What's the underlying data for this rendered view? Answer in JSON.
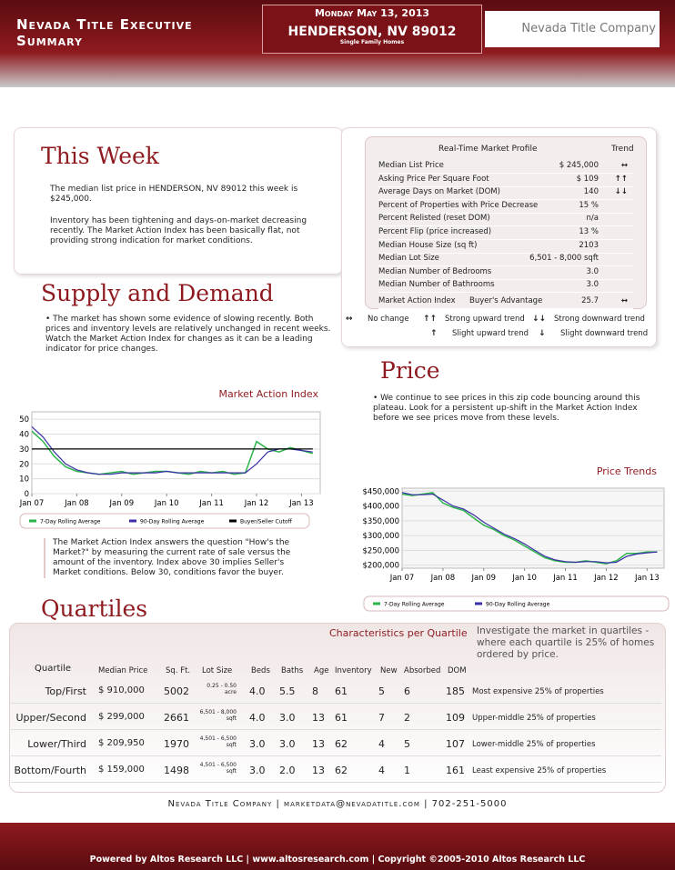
{
  "header": {
    "title": "Nevada Title Executive Summary",
    "date": "Monday May 13, 2013",
    "location": "HENDERSON, NV 89012",
    "property_type": "Single Family Homes",
    "logo": "Nevada Title Company"
  },
  "this_week": {
    "heading": "This Week",
    "paragraphs": [
      "The median list price in HENDERSON, NV 89012 this week is $245,000.",
      "Inventory has been tightening and days-on-market decreasing recently. The Market Action Index has been basically flat, not providing strong indication for market conditions."
    ]
  },
  "profile": {
    "title": "Real-Time Market Profile",
    "trend_header": "Trend",
    "rows": [
      {
        "label": "Median List Price",
        "value": "$ 245,000",
        "trend": "↔"
      },
      {
        "label": "Asking Price Per Square Foot",
        "value": "$ 109",
        "trend": "↑↑"
      },
      {
        "label": "Average Days on Market (DOM)",
        "value": "140",
        "trend": "↓↓"
      },
      {
        "label": "Percent of Properties with Price Decrease",
        "value": "15 %"
      },
      {
        "label": "Percent Relisted (reset DOM)",
        "value": "n/a"
      },
      {
        "label": "Percent Flip (price increased)",
        "value": "13 %"
      },
      {
        "label": "Median House Size (sq ft)",
        "value": "2103"
      },
      {
        "label": "Median Lot Size",
        "value": "6,501 - 8,000 sqft"
      },
      {
        "label": "Median Number of Bedrooms",
        "value": "3.0"
      },
      {
        "label": "Median Number of Bathrooms",
        "value": "3.0"
      },
      {
        "label": "Market Action Index",
        "note": "Buyer's Advantage",
        "value": "25.7",
        "trend": "↔"
      }
    ]
  },
  "trend_legend": [
    {
      "symbol": "↔",
      "label": "No change"
    },
    {
      "symbol": "↑↑",
      "label": "Strong upward trend"
    },
    {
      "symbol": "↓↓",
      "label": "Strong downward trend"
    },
    {
      "symbol": "↑",
      "label": "Slight upward trend"
    },
    {
      "symbol": "↓",
      "label": "Slight downward trend"
    }
  ],
  "supply": {
    "heading": "Supply and Demand",
    "text": "The market has shown some evidence of slowing recently.  Both prices and inventory levels are relatively unchanged in recent weeks. Watch the Market Action Index for changes as it can be a leading indicator for price changes."
  },
  "price": {
    "heading": "Price",
    "text": "We continue to see prices in this zip code bouncing around this plateau. Look for a persistent up-shift in the Market Action Index before we see prices move from these levels."
  },
  "mai_caption": "The Market Action Index answers the question \"How's the Market?\" by measuring the current rate of sale versus the amount of the inventory.  Index above 30 implies Seller's Market conditions. Below 30, conditions favor the buyer.",
  "chart_data": [
    {
      "type": "line",
      "title": "Market Action Index",
      "x": [
        0,
        3,
        6,
        9,
        12,
        15,
        18,
        21,
        24,
        27,
        30,
        33,
        36,
        39,
        42,
        45,
        48,
        51,
        54,
        57,
        60,
        63,
        66,
        69,
        72,
        75
      ],
      "xlim": [
        0,
        77
      ],
      "xticks": [
        {
          "value": 0,
          "label": "Jan 07"
        },
        {
          "value": 12,
          "label": "Jan 08"
        },
        {
          "value": 24,
          "label": "Jan 09"
        },
        {
          "value": 36,
          "label": "Jan 10"
        },
        {
          "value": 48,
          "label": "Jan 11"
        },
        {
          "value": 60,
          "label": "Jan 12"
        },
        {
          "value": 72,
          "label": "Jan 13"
        }
      ],
      "ylim": [
        0,
        55
      ],
      "yticks": [
        0,
        10,
        20,
        30,
        40,
        50
      ],
      "series": [
        {
          "name": "7-Day Rolling Average",
          "color": "#2db34a",
          "values": [
            42,
            35,
            25,
            18,
            15,
            14,
            13,
            14,
            15,
            13,
            14,
            15,
            15,
            14,
            13,
            15,
            14,
            15,
            13,
            14,
            35,
            30,
            28,
            31,
            29,
            27
          ]
        },
        {
          "name": "90-Day Rolling Average",
          "color": "#3a2fa8",
          "values": [
            45,
            38,
            28,
            20,
            16,
            14,
            13,
            13,
            14,
            14,
            14,
            14,
            15,
            14,
            14,
            14,
            14,
            14,
            14,
            14,
            20,
            28,
            30,
            30,
            29,
            28
          ]
        },
        {
          "name": "Buyer/Seller Cutoff",
          "color": "#000000",
          "values": [
            30,
            30,
            30,
            30,
            30,
            30,
            30,
            30,
            30,
            30,
            30,
            30,
            30,
            30,
            30,
            30,
            30,
            30,
            30,
            30,
            30,
            30,
            30,
            30,
            30,
            30
          ]
        }
      ]
    },
    {
      "type": "line",
      "title": "Price Trends",
      "x": [
        0,
        3,
        6,
        9,
        12,
        15,
        18,
        21,
        24,
        27,
        30,
        33,
        36,
        39,
        42,
        45,
        48,
        51,
        54,
        57,
        60,
        63,
        66,
        69,
        72,
        75
      ],
      "xlim": [
        0,
        77
      ],
      "xticks": [
        {
          "value": 0,
          "label": "Jan 07"
        },
        {
          "value": 12,
          "label": "Jan 08"
        },
        {
          "value": 24,
          "label": "Jan 09"
        },
        {
          "value": 36,
          "label": "Jan 10"
        },
        {
          "value": 48,
          "label": "Jan 11"
        },
        {
          "value": 60,
          "label": "Jan 12"
        },
        {
          "value": 72,
          "label": "Jan 13"
        }
      ],
      "ylim": [
        190000,
        460000
      ],
      "yticks": [
        {
          "value": 200000,
          "label": "$200,000"
        },
        {
          "value": 250000,
          "label": "$250,000"
        },
        {
          "value": 300000,
          "label": "$300,000"
        },
        {
          "value": 350000,
          "label": "$350,000"
        },
        {
          "value": 400000,
          "label": "$400,000"
        },
        {
          "value": 450000,
          "label": "$450,000"
        }
      ],
      "series": [
        {
          "name": "7-Day Rolling Average",
          "color": "#2db34a",
          "values": [
            440000,
            435000,
            440000,
            445000,
            410000,
            395000,
            385000,
            360000,
            335000,
            320000,
            300000,
            285000,
            265000,
            245000,
            225000,
            215000,
            210000,
            210000,
            215000,
            210000,
            205000,
            215000,
            240000,
            240000,
            245000,
            245000
          ]
        },
        {
          "name": "90-Day Rolling Average",
          "color": "#3a2fa8",
          "values": [
            445000,
            438000,
            438000,
            440000,
            420000,
            400000,
            390000,
            370000,
            345000,
            325000,
            305000,
            290000,
            272000,
            250000,
            230000,
            218000,
            212000,
            210000,
            212000,
            212000,
            208000,
            210000,
            230000,
            238000,
            242000,
            245000
          ]
        }
      ]
    }
  ],
  "quartiles": {
    "heading": "Quartiles",
    "subtitle": "Characteristics per Quartile",
    "intro": "Investigate the market in quartiles - where each quartile is 25% of homes ordered by price.",
    "columns": [
      "Quartile",
      "Median Price",
      "Sq. Ft.",
      "Lot Size",
      "Beds",
      "Baths",
      "Age",
      "Inventory",
      "New",
      "Absorbed",
      "DOM"
    ],
    "rows": [
      [
        "Top/First",
        "$ 910,000",
        "5002",
        "0.25 - 0.50 acre",
        "4.0",
        "5.5",
        "8",
        "61",
        "5",
        "6",
        "185",
        "Most expensive 25% of properties"
      ],
      [
        "Upper/Second",
        "$ 299,000",
        "2661",
        "6,501 - 8,000 sqft",
        "4.0",
        "3.0",
        "13",
        "61",
        "7",
        "2",
        "109",
        "Upper-middle 25% of properties"
      ],
      [
        "Lower/Third",
        "$ 209,950",
        "1970",
        "4,501 - 6,500 sqft",
        "3.0",
        "3.0",
        "13",
        "62",
        "4",
        "5",
        "107",
        "Lower-middle 25% of properties"
      ],
      [
        "Bottom/Fourth",
        "$ 159,000",
        "1498",
        "4,501 - 6,500 sqft",
        "3.0",
        "2.0",
        "13",
        "62",
        "4",
        "1",
        "161",
        "Least expensive 25% of properties"
      ]
    ]
  },
  "contact": "Nevada Title Company | marketdata@nevadatitle.com | 702-251-5000",
  "footer": "Powered by Altos Research LLC | www.altosresearch.com | Copyright ©2005-2010 Altos Research LLC"
}
